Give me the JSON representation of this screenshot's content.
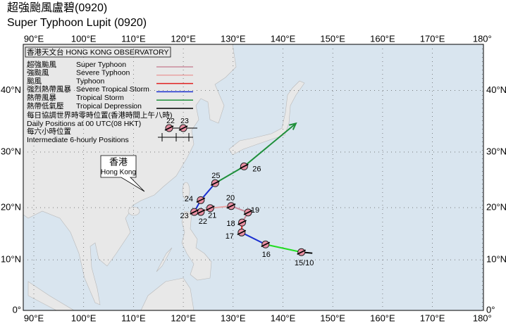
{
  "header": {
    "title_zh": "超強颱風盧碧(0920)",
    "title_en": "Super Typhoon Lupit (0920)"
  },
  "legend": {
    "title": "香港天文台 HONG KONG OBSERVATORY",
    "entries": [
      {
        "zh": "超強颱風",
        "en": "Super Typhoon",
        "color": "#c98a9c"
      },
      {
        "zh": "強颱風",
        "en": "Severe Typhoon",
        "color": "#e7a2a2"
      },
      {
        "zh": "颱風",
        "en": "Typhoon",
        "color": "#e02020"
      },
      {
        "zh": "強烈熱帶風暴",
        "en": "Severe Tropical Storm",
        "color": "#1a2fd0"
      },
      {
        "zh": "熱帶風暴",
        "en": "Tropical Storm",
        "color": "#1e8f3a"
      },
      {
        "zh": "熱帶低氣壓",
        "en": "Tropical Depression",
        "color": "#000000"
      }
    ],
    "daily_zh": "每日協調世界時零時位置(香港時間上午八時)",
    "daily_en": "Daily Positions at 00 UTC(08 HKT)",
    "sample_labels": [
      "22",
      "23"
    ],
    "hourly_zh": "每六小時位置",
    "hourly_en": "Intermediate 6-hourly Positions"
  },
  "map": {
    "lon_ticks": [
      {
        "value": 90,
        "label": "90°E"
      },
      {
        "value": 100,
        "label": "100°E"
      },
      {
        "value": 110,
        "label": "110°E"
      },
      {
        "value": 120,
        "label": "120°E"
      },
      {
        "value": 130,
        "label": "130°E"
      },
      {
        "value": 140,
        "label": "140°E"
      },
      {
        "value": 150,
        "label": "150°E"
      },
      {
        "value": 160,
        "label": "160°E"
      },
      {
        "value": 170,
        "label": "170°E"
      },
      {
        "value": 180,
        "label": "180°"
      }
    ],
    "lat_ticks": [
      {
        "value": 0,
        "label": "0°"
      },
      {
        "value": 10,
        "label": "10°N"
      },
      {
        "value": 20,
        "label": "20°N"
      },
      {
        "value": 30,
        "label": "30°N"
      },
      {
        "value": 40,
        "label": "40°N"
      }
    ],
    "callout": {
      "zh": "香港",
      "en": "Hong Kong"
    },
    "track": [
      {
        "lon": 145.9,
        "lat": 11.3,
        "color": "#000000"
      },
      {
        "lon": 143.7,
        "lat": 11.5,
        "label": "15/10",
        "color": "#000000"
      },
      {
        "lon": 136.5,
        "lat": 13.0,
        "label": "16",
        "color": "#22dd22"
      },
      {
        "lon": 131.7,
        "lat": 15.3,
        "label": "17",
        "color": "#1a2fd0"
      },
      {
        "lon": 131.8,
        "lat": 17.2,
        "label": "18",
        "color": "#e02020"
      },
      {
        "lon": 133.0,
        "lat": 19.1,
        "label": "19",
        "color": "#c98a9c"
      },
      {
        "lon": 129.6,
        "lat": 20.3,
        "label": "20",
        "color": "#c98a9c"
      },
      {
        "lon": 125.4,
        "lat": 19.9,
        "label": "21",
        "color": "#e7a2a2"
      },
      {
        "lon": 123.5,
        "lat": 19.2,
        "label": "22",
        "color": "#e7a2a2"
      },
      {
        "lon": 122.2,
        "lat": 19.2,
        "label": "23",
        "color": "#e02020"
      },
      {
        "lon": 123.5,
        "lat": 21.4,
        "label": "24",
        "color": "#1a2fd0"
      },
      {
        "lon": 126.4,
        "lat": 24.5,
        "label": "25",
        "color": "#1a2fd0"
      },
      {
        "lon": 132.2,
        "lat": 27.5,
        "label": "26",
        "color": "#1e8f3a"
      },
      {
        "lon": 142.6,
        "lat": 34.8,
        "color": "#1e8f3a"
      }
    ]
  }
}
